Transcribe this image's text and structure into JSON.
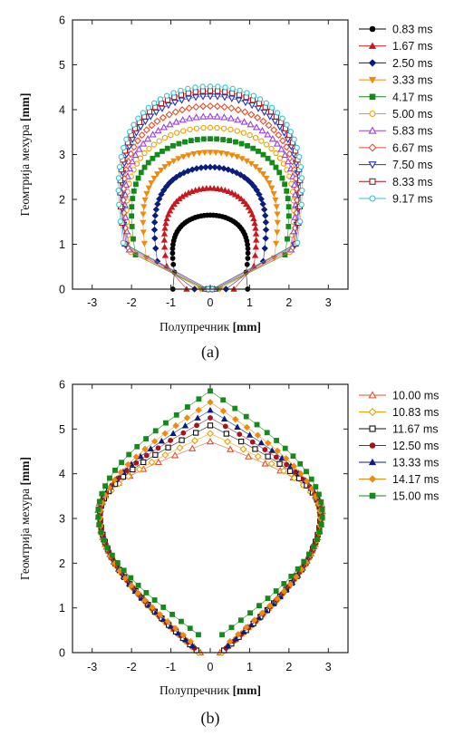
{
  "chart_data": [
    {
      "type": "scatter",
      "panel_label": "(a)",
      "xlabel": "Полупречник",
      "xunit": "[mm]",
      "ylabel": "Геомтрија мехура",
      "yunit": "[mm]",
      "xlim": [
        -3.5,
        3.5
      ],
      "ylim": [
        0,
        6
      ],
      "xticks": [
        "-3",
        "-2",
        "-1",
        "0",
        "1",
        "2",
        "3"
      ],
      "yticks": [
        "0",
        "1",
        "2",
        "3",
        "4",
        "5",
        "6"
      ],
      "grid": false,
      "legend_position": "right",
      "series": [
        {
          "name": "0.83 ms",
          "color": "#000000",
          "marker": "circle-filled",
          "shape": "cap",
          "top": 1.65,
          "half_width": 1.15,
          "base_width": 0.95
        },
        {
          "name": "1.67 ms",
          "color": "#c8171d",
          "marker": "triangle-filled",
          "shape": "cap",
          "top": 2.25,
          "half_width": 1.4,
          "base_width": 0.6
        },
        {
          "name": "2.50 ms",
          "color": "#0b1d7c",
          "marker": "diamond-filled",
          "shape": "cap",
          "top": 2.72,
          "half_width": 1.7,
          "base_width": 0.4
        },
        {
          "name": "3.33 ms",
          "color": "#f08a0c",
          "marker": "triangle-down-filled",
          "shape": "cap",
          "top": 3.05,
          "half_width": 2.05,
          "base_width": 0.25
        },
        {
          "name": "4.17 ms",
          "color": "#138a1b",
          "marker": "square-filled",
          "shape": "cap",
          "top": 3.35,
          "half_width": 2.4,
          "base_width": 0.15
        },
        {
          "name": "5.00 ms",
          "color": "#f0a000",
          "marker": "circle-open",
          "shape": "cap",
          "top": 3.6,
          "half_width": 2.55,
          "base_width": 0.1
        },
        {
          "name": "5.83 ms",
          "color": "#9b3fd9",
          "marker": "triangle-open",
          "shape": "cap",
          "top": 3.85,
          "half_width": 2.6,
          "base_width": 0.1
        },
        {
          "name": "6.67 ms",
          "color": "#e0502a",
          "marker": "diamond-open",
          "shape": "cap",
          "top": 4.08,
          "half_width": 2.65,
          "base_width": 0.05
        },
        {
          "name": "7.50 ms",
          "color": "#2433b8",
          "marker": "triangle-down-open",
          "shape": "cap",
          "top": 4.3,
          "half_width": 2.7,
          "base_width": 0.05
        },
        {
          "name": "8.33 ms",
          "color": "#a4151c",
          "marker": "square-open",
          "shape": "cap",
          "top": 4.42,
          "half_width": 2.75,
          "base_width": 0.05
        },
        {
          "name": "9.17 ms",
          "color": "#2fc4d3",
          "marker": "circle-open",
          "shape": "cap",
          "top": 4.52,
          "half_width": 2.8,
          "base_width": 0.05
        }
      ]
    },
    {
      "type": "scatter",
      "panel_label": "(b)",
      "xlabel": "Полупречник",
      "xunit": "[mm]",
      "ylabel": "Геомтрија мехура",
      "yunit": "[mm]",
      "xlim": [
        -3.5,
        3.5
      ],
      "ylim": [
        0,
        6
      ],
      "xticks": [
        "-3",
        "-2",
        "-1",
        "0",
        "1",
        "2",
        "3"
      ],
      "yticks": [
        "0",
        "1",
        "2",
        "3",
        "4",
        "5",
        "6"
      ],
      "grid": false,
      "legend_position": "right",
      "series": [
        {
          "name": "10.00 ms",
          "color": "#e0502a",
          "marker": "triangle-open",
          "shape": "drop",
          "top": 4.72,
          "max_x": 2.85,
          "y_at_max": 3.2,
          "bottom": 0.0,
          "base_halfwidth": 0.25
        },
        {
          "name": "10.83 ms",
          "color": "#f0a000",
          "marker": "diamond-open",
          "shape": "drop",
          "top": 4.9,
          "max_x": 2.8,
          "y_at_max": 3.1,
          "bottom": 0.0,
          "base_halfwidth": 0.3
        },
        {
          "name": "11.67 ms",
          "color": "#111111",
          "marker": "square-open",
          "shape": "drop",
          "top": 5.08,
          "max_x": 2.8,
          "y_at_max": 3.1,
          "bottom": 0.05,
          "base_halfwidth": 0.35
        },
        {
          "name": "12.50 ms",
          "color": "#a4151c",
          "marker": "circle-filled",
          "shape": "drop",
          "top": 5.25,
          "max_x": 2.8,
          "y_at_max": 3.1,
          "bottom": 0.1,
          "base_halfwidth": 0.4
        },
        {
          "name": "13.33 ms",
          "color": "#0b1d7c",
          "marker": "triangle-filled",
          "shape": "drop",
          "top": 5.42,
          "max_x": 2.8,
          "y_at_max": 3.05,
          "bottom": 0.15,
          "base_halfwidth": 0.45
        },
        {
          "name": "14.17 ms",
          "color": "#f08a0c",
          "marker": "diamond-filled",
          "shape": "drop",
          "top": 5.6,
          "max_x": 2.8,
          "y_at_max": 3.0,
          "bottom": 0.25,
          "base_halfwidth": 0.5
        },
        {
          "name": "15.00 ms",
          "color": "#138a1b",
          "marker": "square-filled",
          "shape": "drop",
          "top": 5.85,
          "max_x": 2.85,
          "y_at_max": 3.1,
          "bottom": 0.4,
          "base_halfwidth": 0.3
        }
      ]
    }
  ]
}
